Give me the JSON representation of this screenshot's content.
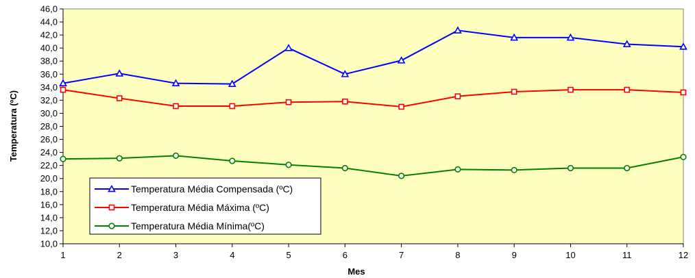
{
  "chart_data": {
    "type": "line",
    "xlabel": "Mes",
    "ylabel": "Temperatura (ºC)",
    "ylim": [
      10.0,
      46.0
    ],
    "ytick_step": 2,
    "ytick_labels": [
      "10,0",
      "12,0",
      "14,0",
      "16,0",
      "18,0",
      "20,0",
      "22,0",
      "24,0",
      "26,0",
      "28,0",
      "30,0",
      "32,0",
      "34,0",
      "36,0",
      "38,0",
      "40,0",
      "42,0",
      "44,0",
      "46,0"
    ],
    "categories": [
      "1",
      "2",
      "3",
      "4",
      "5",
      "6",
      "7",
      "8",
      "9",
      "10",
      "11",
      "12"
    ],
    "grid": false,
    "legend_position": "bottom-left inside plot",
    "plot_background": "#FFFFC0",
    "series": [
      {
        "name": "Temperatura Média Compensada (ºC)",
        "color": "#0000FF",
        "marker": "triangle",
        "values": [
          34.6,
          36.1,
          34.6,
          34.5,
          40.0,
          36.0,
          38.1,
          42.7,
          41.6,
          41.6,
          40.6,
          40.2
        ]
      },
      {
        "name": "Temperatura Média Máxima (ºC)",
        "color": "#FF0000",
        "marker": "square",
        "values": [
          33.6,
          32.3,
          31.1,
          31.1,
          31.7,
          31.8,
          31.0,
          32.6,
          33.3,
          33.6,
          33.6,
          33.2
        ]
      },
      {
        "name": "Temperatura Média Mínima(ºC)",
        "color": "#008000",
        "marker": "circle",
        "values": [
          23.0,
          23.1,
          23.5,
          22.7,
          22.1,
          21.6,
          20.4,
          21.4,
          21.3,
          21.6,
          21.6,
          23.3
        ]
      }
    ]
  }
}
